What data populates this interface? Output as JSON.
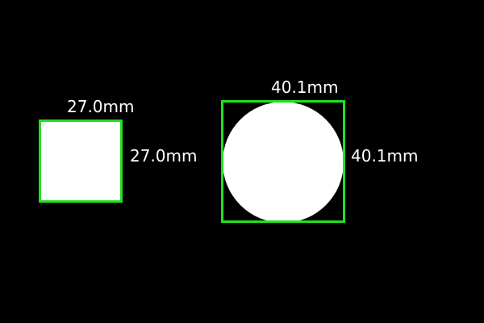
{
  "colors": {
    "background": "#000000",
    "object_fill": "#ffffff",
    "bbox_stroke": "#22e022",
    "label_text": "#ffffff"
  },
  "objects": [
    {
      "shape": "square",
      "width_label": "27.0mm",
      "height_label": "27.0mm"
    },
    {
      "shape": "circle",
      "width_label": "40.1mm",
      "height_label": "40.1mm"
    }
  ]
}
